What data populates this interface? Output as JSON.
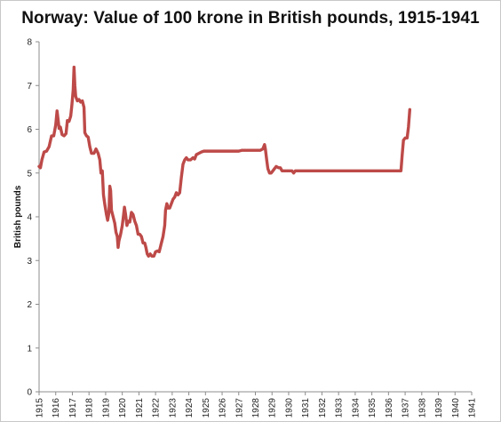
{
  "colors": {
    "line": "#bd4a48",
    "axis": "#8c8c8c",
    "border": "#c8c8c8"
  },
  "chart_data": {
    "type": "line",
    "title": "Norway: Value of 100 krone in British pounds, 1915-1941",
    "xlabel": "",
    "ylabel": "British pounds",
    "xlim": [
      1915,
      1941
    ],
    "ylim": [
      0,
      8
    ],
    "x_ticks": [
      "1915",
      "1916",
      "1917",
      "1918",
      "1919",
      "1920",
      "1921",
      "1922",
      "1923",
      "1924",
      "1925",
      "1926",
      "1927",
      "1928",
      "1929",
      "1930",
      "1931",
      "1932",
      "1933",
      "1934",
      "1935",
      "1936",
      "1937",
      "1938",
      "1939",
      "1940",
      "1941"
    ],
    "y_ticks": [
      "0",
      "1",
      "2",
      "3",
      "4",
      "5",
      "6",
      "7",
      "8"
    ],
    "grid": false,
    "legend": "none",
    "series": [
      {
        "points": [
          [
            1915.0,
            5.15
          ],
          [
            1915.08,
            5.12
          ],
          [
            1915.17,
            5.3
          ],
          [
            1915.3,
            5.48
          ],
          [
            1915.45,
            5.5
          ],
          [
            1915.6,
            5.6
          ],
          [
            1915.75,
            5.85
          ],
          [
            1915.88,
            5.85
          ],
          [
            1916.0,
            6.1
          ],
          [
            1916.08,
            6.42
          ],
          [
            1916.15,
            6.2
          ],
          [
            1916.2,
            6.02
          ],
          [
            1916.28,
            6.05
          ],
          [
            1916.38,
            5.88
          ],
          [
            1916.5,
            5.85
          ],
          [
            1916.62,
            5.9
          ],
          [
            1916.7,
            6.2
          ],
          [
            1916.8,
            6.18
          ],
          [
            1916.9,
            6.3
          ],
          [
            1916.97,
            6.55
          ],
          [
            1917.05,
            6.9
          ],
          [
            1917.1,
            7.42
          ],
          [
            1917.15,
            7.0
          ],
          [
            1917.2,
            6.75
          ],
          [
            1917.3,
            6.65
          ],
          [
            1917.4,
            6.68
          ],
          [
            1917.5,
            6.62
          ],
          [
            1917.6,
            6.65
          ],
          [
            1917.7,
            6.5
          ],
          [
            1917.75,
            5.92
          ],
          [
            1917.85,
            5.85
          ],
          [
            1917.95,
            5.82
          ],
          [
            1918.05,
            5.6
          ],
          [
            1918.15,
            5.45
          ],
          [
            1918.3,
            5.45
          ],
          [
            1918.42,
            5.55
          ],
          [
            1918.55,
            5.45
          ],
          [
            1918.65,
            5.3
          ],
          [
            1918.72,
            5.0
          ],
          [
            1918.8,
            5.05
          ],
          [
            1918.87,
            4.5
          ],
          [
            1918.95,
            4.28
          ],
          [
            1919.05,
            4.05
          ],
          [
            1919.12,
            3.92
          ],
          [
            1919.2,
            4.1
          ],
          [
            1919.25,
            4.7
          ],
          [
            1919.3,
            4.6
          ],
          [
            1919.35,
            4.15
          ],
          [
            1919.45,
            4.0
          ],
          [
            1919.55,
            3.85
          ],
          [
            1919.62,
            3.65
          ],
          [
            1919.7,
            3.55
          ],
          [
            1919.75,
            3.3
          ],
          [
            1919.8,
            3.45
          ],
          [
            1919.9,
            3.6
          ],
          [
            1920.0,
            3.8
          ],
          [
            1920.08,
            4.05
          ],
          [
            1920.13,
            4.22
          ],
          [
            1920.2,
            4.05
          ],
          [
            1920.28,
            3.8
          ],
          [
            1920.35,
            3.9
          ],
          [
            1920.45,
            3.88
          ],
          [
            1920.55,
            4.1
          ],
          [
            1920.65,
            4.05
          ],
          [
            1920.75,
            3.9
          ],
          [
            1920.85,
            3.8
          ],
          [
            1920.95,
            3.6
          ],
          [
            1921.05,
            3.6
          ],
          [
            1921.15,
            3.55
          ],
          [
            1921.25,
            3.4
          ],
          [
            1921.35,
            3.4
          ],
          [
            1921.42,
            3.3
          ],
          [
            1921.5,
            3.15
          ],
          [
            1921.58,
            3.1
          ],
          [
            1921.68,
            3.15
          ],
          [
            1921.78,
            3.1
          ],
          [
            1921.9,
            3.1
          ],
          [
            1922.0,
            3.2
          ],
          [
            1922.12,
            3.22
          ],
          [
            1922.22,
            3.2
          ],
          [
            1922.35,
            3.4
          ],
          [
            1922.45,
            3.55
          ],
          [
            1922.55,
            3.8
          ],
          [
            1922.6,
            4.15
          ],
          [
            1922.68,
            4.3
          ],
          [
            1922.75,
            4.2
          ],
          [
            1922.85,
            4.2
          ],
          [
            1922.95,
            4.3
          ],
          [
            1923.05,
            4.4
          ],
          [
            1923.15,
            4.45
          ],
          [
            1923.25,
            4.55
          ],
          [
            1923.35,
            4.5
          ],
          [
            1923.45,
            4.55
          ],
          [
            1923.55,
            4.9
          ],
          [
            1923.65,
            5.2
          ],
          [
            1923.75,
            5.3
          ],
          [
            1923.85,
            5.35
          ],
          [
            1923.95,
            5.3
          ],
          [
            1924.1,
            5.3
          ],
          [
            1924.25,
            5.35
          ],
          [
            1924.35,
            5.32
          ],
          [
            1924.45,
            5.42
          ],
          [
            1924.6,
            5.45
          ],
          [
            1924.75,
            5.48
          ],
          [
            1924.9,
            5.5
          ],
          [
            1925.1,
            5.5
          ],
          [
            1925.5,
            5.5
          ],
          [
            1926.0,
            5.5
          ],
          [
            1926.5,
            5.5
          ],
          [
            1927.0,
            5.5
          ],
          [
            1927.2,
            5.52
          ],
          [
            1927.5,
            5.52
          ],
          [
            1928.0,
            5.52
          ],
          [
            1928.3,
            5.52
          ],
          [
            1928.45,
            5.55
          ],
          [
            1928.55,
            5.65
          ],
          [
            1928.6,
            5.55
          ],
          [
            1928.68,
            5.3
          ],
          [
            1928.75,
            5.1
          ],
          [
            1928.85,
            5.0
          ],
          [
            1928.95,
            5.0
          ],
          [
            1929.05,
            5.05
          ],
          [
            1929.15,
            5.1
          ],
          [
            1929.25,
            5.15
          ],
          [
            1929.4,
            5.12
          ],
          [
            1929.5,
            5.12
          ],
          [
            1929.6,
            5.05
          ],
          [
            1929.8,
            5.05
          ],
          [
            1930.0,
            5.05
          ],
          [
            1930.2,
            5.05
          ],
          [
            1930.3,
            5.0
          ],
          [
            1930.4,
            5.05
          ],
          [
            1930.6,
            5.05
          ],
          [
            1931.0,
            5.05
          ],
          [
            1932.0,
            5.05
          ],
          [
            1933.0,
            5.05
          ],
          [
            1934.0,
            5.05
          ],
          [
            1935.0,
            5.05
          ],
          [
            1936.0,
            5.05
          ],
          [
            1936.6,
            5.05
          ],
          [
            1936.75,
            5.05
          ],
          [
            1936.82,
            5.4
          ],
          [
            1936.9,
            5.75
          ],
          [
            1937.0,
            5.8
          ],
          [
            1937.12,
            5.8
          ],
          [
            1937.2,
            6.05
          ],
          [
            1937.28,
            6.45
          ]
        ]
      }
    ]
  }
}
